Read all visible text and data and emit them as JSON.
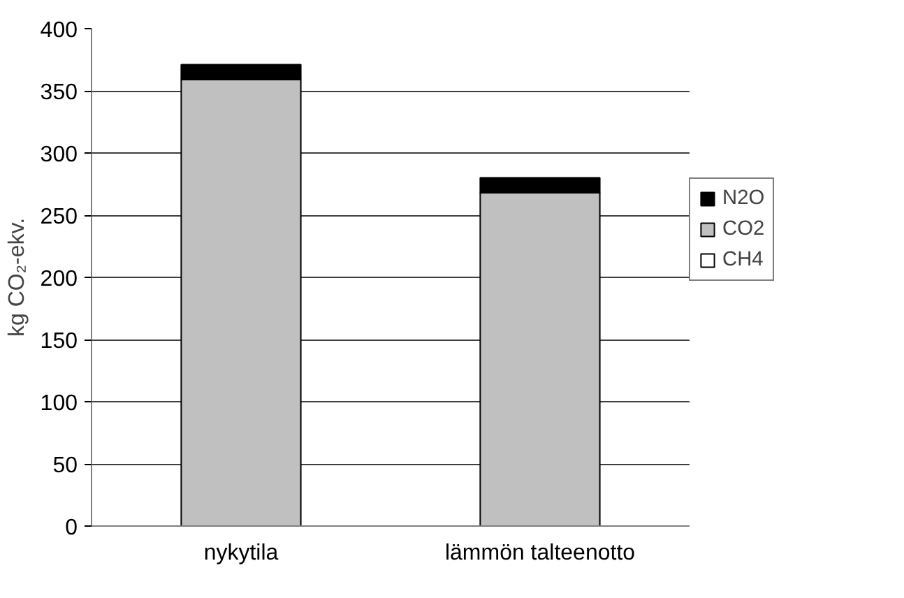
{
  "chart_data": {
    "type": "bar",
    "stacked": true,
    "ylabel": "kg CO₂-ekv.",
    "categories": [
      "nykytila",
      "lämmön talteenotto"
    ],
    "series": [
      {
        "name": "CH4",
        "color": "#ffffff",
        "values": [
          0,
          0
        ]
      },
      {
        "name": "CO2",
        "color": "#c0c0c0",
        "values": [
          359,
          268
        ]
      },
      {
        "name": "N2O",
        "color": "#000000",
        "values": [
          12,
          12
        ]
      }
    ],
    "ylim": [
      0,
      400
    ],
    "yticks": [
      0,
      50,
      100,
      150,
      200,
      250,
      300,
      350,
      400
    ],
    "grid": "y",
    "legend": "right"
  }
}
